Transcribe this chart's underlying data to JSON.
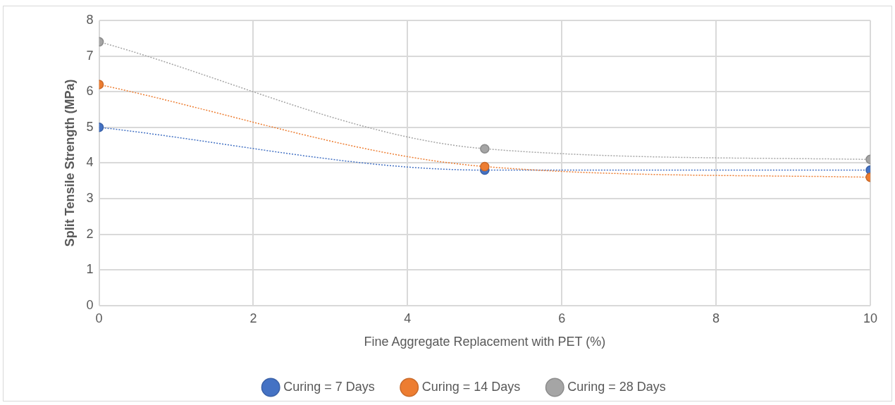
{
  "chart_data": {
    "type": "line",
    "xlabel": "Fine Aggregate Replacement with PET (%)",
    "ylabel": "Split Tensile Strength (MPa)",
    "x": [
      0,
      5,
      10
    ],
    "series": [
      {
        "name": "Curing = 7 Days",
        "color": "#4472c4",
        "values": [
          5.0,
          3.8,
          3.8
        ]
      },
      {
        "name": "Curing = 14 Days",
        "color": "#ed7d31",
        "values": [
          6.2,
          3.9,
          3.6
        ]
      },
      {
        "name": "Curing = 28 Days",
        "color": "#a5a5a5",
        "values": [
          7.4,
          4.4,
          4.1
        ]
      }
    ],
    "xlim": [
      0,
      10
    ],
    "xticks": [
      0,
      2,
      4,
      6,
      8,
      10
    ],
    "ylim": [
      0,
      8
    ],
    "yticks": [
      0,
      1,
      2,
      3,
      4,
      5,
      6,
      7,
      8
    ],
    "grid": true,
    "legend": "bottom",
    "marker": "circle",
    "line_style": "dotted"
  }
}
